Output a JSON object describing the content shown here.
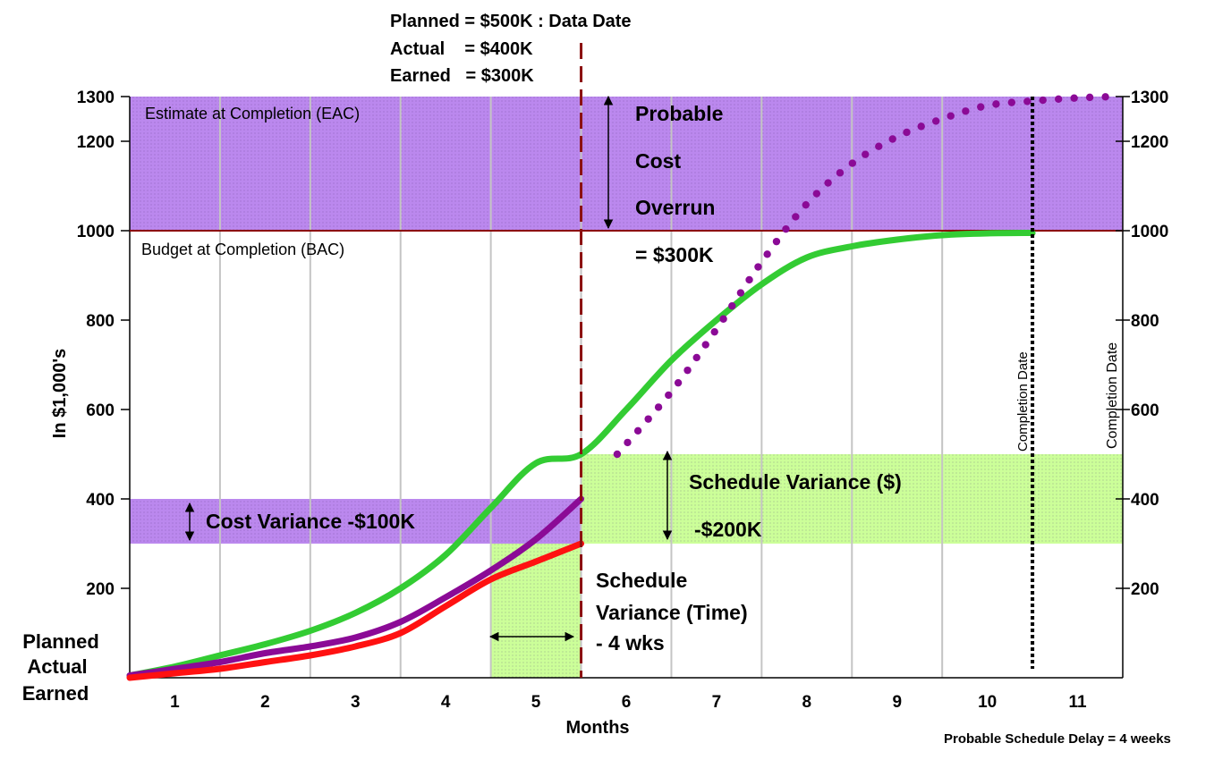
{
  "chart_data": {
    "type": "line",
    "xlabel": "Months",
    "ylabel": "In $1,000's",
    "x_ticks": [
      "1",
      "2",
      "3",
      "4",
      "5",
      "6",
      "7",
      "8",
      "9",
      "10",
      "11"
    ],
    "y_ticks": [
      200,
      400,
      600,
      800,
      1000,
      1200,
      1300
    ],
    "ylim": [
      0,
      1300
    ],
    "xlim": [
      0.5,
      11.5
    ],
    "grid": "vertical",
    "legend_position": "bottom-left",
    "legend": [
      {
        "label": "Planned",
        "color": "#22aa22"
      },
      {
        "label": "Actual",
        "color": "#cc2299"
      },
      {
        "label": "Earned",
        "color": "#ff2222"
      }
    ],
    "series": [
      {
        "name": "Planned",
        "color": "#33cc33",
        "x": [
          0.5,
          1,
          1.5,
          2,
          2.5,
          3,
          3.5,
          4,
          4.5,
          5,
          5.5,
          6,
          6.5,
          7,
          7.5,
          8,
          8.5,
          9,
          9.5,
          10,
          10.5
        ],
        "y": [
          5,
          25,
          50,
          75,
          105,
          145,
          200,
          275,
          380,
          480,
          500,
          600,
          710,
          800,
          880,
          940,
          965,
          980,
          990,
          994,
          995
        ]
      },
      {
        "name": "Actual",
        "color": "#8b0a96",
        "x": [
          0.5,
          1,
          1.5,
          2,
          2.5,
          3,
          3.5,
          4,
          4.5,
          5,
          5.5
        ],
        "y": [
          5,
          20,
          35,
          55,
          70,
          90,
          125,
          180,
          240,
          310,
          400
        ]
      },
      {
        "name": "Earned",
        "color": "#ff1111",
        "x": [
          0.5,
          1,
          1.5,
          2,
          2.5,
          3,
          3.5,
          4,
          4.5,
          5,
          5.5
        ],
        "y": [
          0,
          10,
          20,
          35,
          50,
          70,
          100,
          160,
          220,
          260,
          300
        ]
      },
      {
        "name": "EAC forecast",
        "color": "#8b0a96",
        "style": "dotted",
        "x": [
          5.9,
          6.5,
          7,
          7.5,
          8,
          8.5,
          9,
          9.5,
          10,
          10.5,
          11,
          11.4
        ],
        "y": [
          500,
          640,
          780,
          930,
          1060,
          1150,
          1210,
          1250,
          1280,
          1290,
          1297,
          1300
        ]
      }
    ],
    "data_date": 5.5,
    "completion_date": 10.5,
    "bac": 1000,
    "eac": 1300,
    "regions": [
      {
        "id": "eac-band",
        "x": [
          0.5,
          11.5
        ],
        "y": [
          1000,
          1300
        ],
        "fill": "#bb88ee"
      },
      {
        "id": "cost-variance-band",
        "x": [
          0.5,
          5.5
        ],
        "y": [
          300,
          400
        ],
        "fill": "#bb88ee"
      },
      {
        "id": "schedule-variance-dollar-band",
        "x": [
          5.5,
          11.5
        ],
        "y": [
          300,
          500
        ],
        "fill": "#ccff99"
      },
      {
        "id": "schedule-variance-time-band",
        "x": [
          4.5,
          5.5
        ],
        "y": [
          0,
          300
        ],
        "fill": "#ccff99"
      }
    ],
    "annotations": {
      "planned_value": "Planned = $500K : Data Date",
      "actual_value": "Actual    = $400K",
      "earned_value": "Earned   = $300K",
      "eac_label": "Estimate at Completion (EAC)",
      "bac_label": "Budget at Completion (BAC)",
      "overrun_1": "Probable",
      "overrun_2": "Cost",
      "overrun_3": "Overrun",
      "overrun_4": "= $300K",
      "sv_dollar_1": "Schedule Variance ($)",
      "sv_dollar_2": "-$200K",
      "cost_variance": "Cost Variance -$100K",
      "sv_time_1": "Schedule",
      "sv_time_2": "Variance (Time)",
      "sv_time_3": "- 4 wks",
      "completion_date_1": "Completion Date",
      "completion_date_2": "Completion Date",
      "footer": "Probable Schedule Delay = 4 weeks"
    }
  }
}
